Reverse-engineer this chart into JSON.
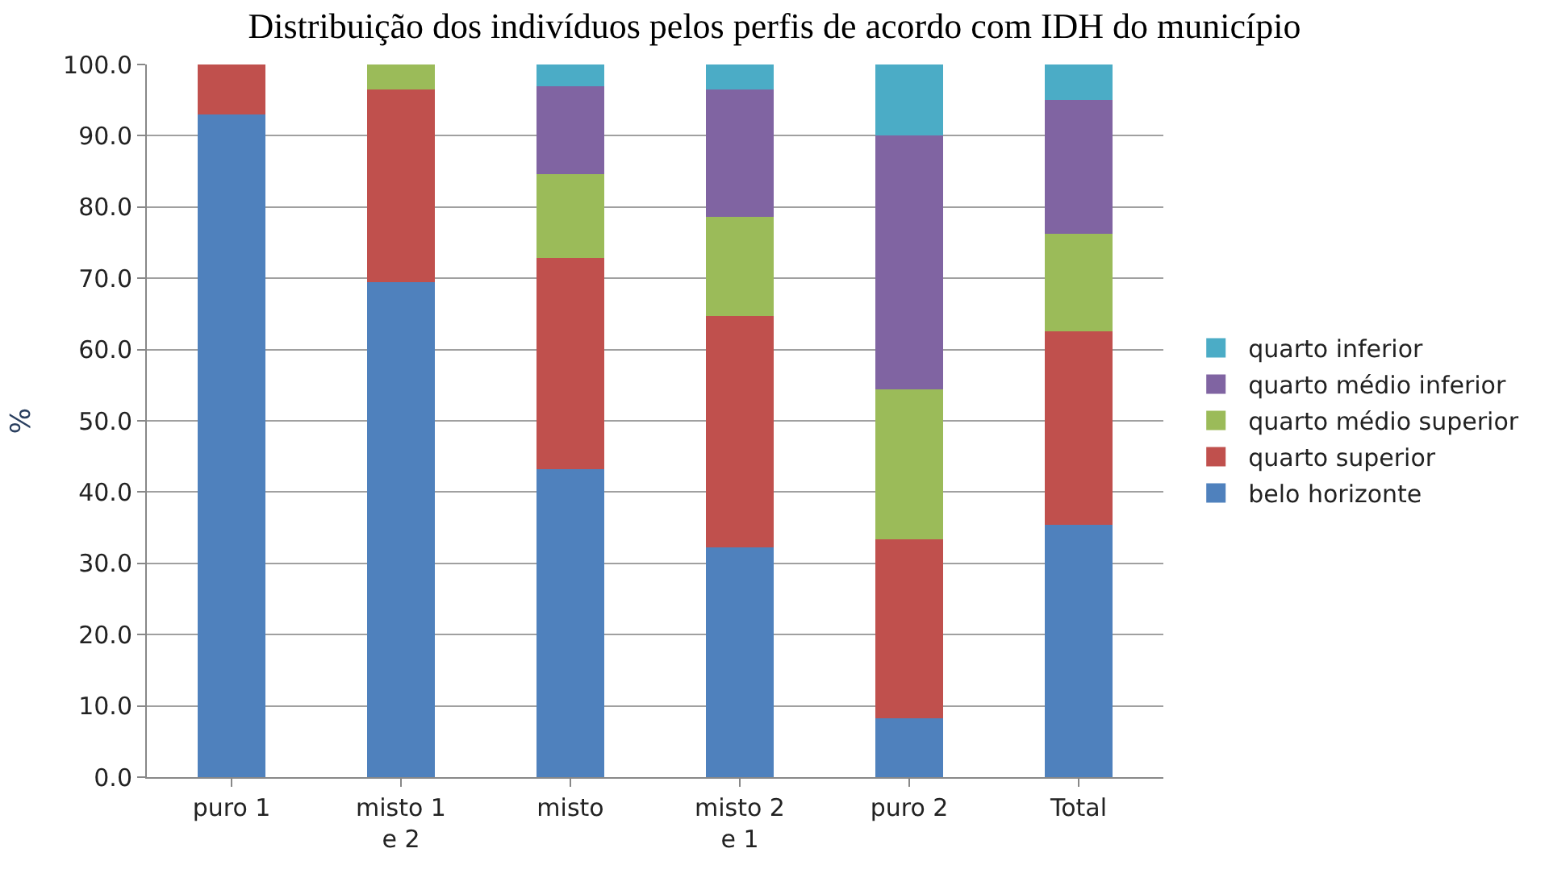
{
  "chart_data": {
    "type": "bar",
    "title": "Distribuição dos indivíduos pelos perfis de acordo com IDH do município",
    "ylabel": "%",
    "categories": [
      "puro 1",
      "misto 1\ne 2",
      "misto",
      "misto 2\ne 1",
      "puro 2",
      "Total"
    ],
    "series": [
      {
        "name": "belo horizonte",
        "color": "#4f81bd",
        "values": [
          93.0,
          69.5,
          43.2,
          32.2,
          8.3,
          35.4
        ]
      },
      {
        "name": "quarto superior",
        "color": "#c0504d",
        "values": [
          7.0,
          27.0,
          29.6,
          32.5,
          25.1,
          27.2
        ]
      },
      {
        "name": "quarto médio superior",
        "color": "#9bbb59",
        "values": [
          null,
          3.5,
          11.8,
          13.9,
          21.0,
          13.7
        ]
      },
      {
        "name": "quarto médio inferior",
        "color": "#8064a2",
        "values": [
          null,
          null,
          12.3,
          17.9,
          35.7,
          18.7
        ]
      },
      {
        "name": "quarto inferior",
        "color": "#4bacc6",
        "values": [
          null,
          null,
          3.1,
          3.5,
          9.9,
          5.0
        ]
      }
    ],
    "stacked": true,
    "ylim": [
      0,
      100
    ],
    "yticks": [
      {
        "value": 0,
        "label": "0.0"
      },
      {
        "value": 10,
        "label": "10.0"
      },
      {
        "value": 20,
        "label": "20.0"
      },
      {
        "value": 30,
        "label": "30.0"
      },
      {
        "value": 40,
        "label": "40.0"
      },
      {
        "value": 50,
        "label": "50.0"
      },
      {
        "value": 60,
        "label": "60.0"
      },
      {
        "value": 70,
        "label": "70.0"
      },
      {
        "value": 80,
        "label": "80.0"
      },
      {
        "value": 90,
        "label": "90.0"
      },
      {
        "value": 100,
        "label": "100.0"
      }
    ],
    "grid": "y",
    "legend": "right"
  }
}
